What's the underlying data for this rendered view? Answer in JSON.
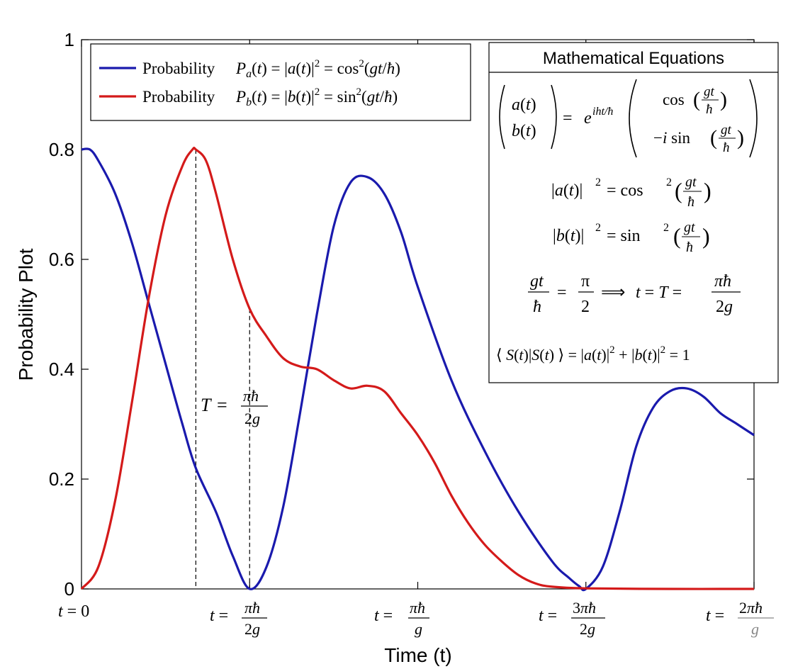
{
  "chart_data": {
    "type": "line",
    "xlabel": "Time (t)",
    "ylabel": "Probability Plot",
    "xlim": [
      0,
      2
    ],
    "ylim": [
      0,
      1
    ],
    "x_unit": "pi*hbar/g",
    "grid": false,
    "legend_position": "top-left",
    "y_ticks": [
      {
        "value": 0,
        "label": "0"
      },
      {
        "value": 0.2,
        "label": "0.2"
      },
      {
        "value": 0.4,
        "label": "0.4"
      },
      {
        "value": 0.6,
        "label": "0.6"
      },
      {
        "value": 0.8,
        "label": "0.8"
      },
      {
        "value": 1,
        "label": "1"
      }
    ],
    "x_ticks": [
      {
        "value": 0,
        "label": "t = 0"
      },
      {
        "value": 0.5,
        "label": "t = πħ/2g"
      },
      {
        "value": 1,
        "label": "t = πħ/g"
      },
      {
        "value": 1.5,
        "label": "t = 3πħ/2g"
      },
      {
        "value": 2,
        "label": "t = 2πħ/g"
      }
    ],
    "series": [
      {
        "name": "Probability Pa(t) = |a(t)|² = cos²(gt/ħ)",
        "legend_label": "Probability",
        "legend_math": "Pa(t) = |a(t)|² = cos²(gt/ħ)",
        "color": "#1a1aad",
        "x": [
          0,
          0.025,
          0.05,
          0.1,
          0.15,
          0.2,
          0.25,
          0.3,
          0.34,
          0.4,
          0.45,
          0.5,
          0.55,
          0.6,
          0.65,
          0.7,
          0.75,
          0.8,
          0.85,
          0.9,
          0.95,
          1.0,
          1.1,
          1.2,
          1.3,
          1.4,
          1.45,
          1.48,
          1.5,
          1.55,
          1.6,
          1.65,
          1.7,
          1.75,
          1.8,
          1.85,
          1.9,
          1.95,
          2.0
        ],
        "y": [
          0.8,
          0.8,
          0.78,
          0.72,
          0.63,
          0.52,
          0.41,
          0.3,
          0.22,
          0.14,
          0.06,
          0.0,
          0.04,
          0.15,
          0.32,
          0.5,
          0.66,
          0.74,
          0.75,
          0.72,
          0.65,
          0.55,
          0.38,
          0.25,
          0.14,
          0.05,
          0.02,
          0.005,
          0.0,
          0.04,
          0.14,
          0.26,
          0.33,
          0.36,
          0.365,
          0.35,
          0.32,
          0.3,
          0.28
        ]
      },
      {
        "name": "Probability Pb(t) = |b(t)|² = sin²(gt/ħ)",
        "legend_label": "Probability",
        "legend_math": "Pb(t) = |b(t)|² = sin²(gt/ħ)",
        "color": "#d41a1a",
        "x": [
          0,
          0.05,
          0.1,
          0.15,
          0.2,
          0.25,
          0.3,
          0.33,
          0.34,
          0.37,
          0.4,
          0.45,
          0.5,
          0.55,
          0.6,
          0.65,
          0.7,
          0.75,
          0.8,
          0.85,
          0.9,
          0.95,
          1.0,
          1.05,
          1.1,
          1.15,
          1.2,
          1.25,
          1.3,
          1.35,
          1.4,
          1.5,
          1.75,
          2.0
        ],
        "y": [
          0.0,
          0.04,
          0.16,
          0.34,
          0.53,
          0.68,
          0.77,
          0.8,
          0.8,
          0.78,
          0.72,
          0.6,
          0.51,
          0.46,
          0.42,
          0.405,
          0.4,
          0.38,
          0.365,
          0.37,
          0.36,
          0.32,
          0.28,
          0.23,
          0.17,
          0.12,
          0.08,
          0.05,
          0.025,
          0.01,
          0.004,
          0.001,
          0.0,
          0.0
        ]
      }
    ],
    "annotations": [
      {
        "type": "dashed-vline",
        "x": 0.34,
        "y_top": 0.8,
        "y_bottom": 0
      },
      {
        "type": "dashed-vline",
        "x": 0.5,
        "y_top": 0.51,
        "y_bottom": 0
      },
      {
        "type": "text",
        "x": 0.45,
        "y": 0.36,
        "text": "T = πħ/2g"
      }
    ],
    "equation_box": {
      "title": "Mathematical Equations",
      "lines": [
        "(a(t), b(t)) = e^(iht/ħ) (cos(gt/ħ), −i sin(gt/ħ))",
        "|a(t)|² = cos²(gt/ħ)",
        "|b(t)|² = sin²(gt/ħ)",
        "gt/ħ = π/2 ⟹ t = T = πħ/2g",
        "⟨ S(t)|S(t) ⟩ = |a(t)|² + |b(t)|² = 1"
      ]
    }
  }
}
